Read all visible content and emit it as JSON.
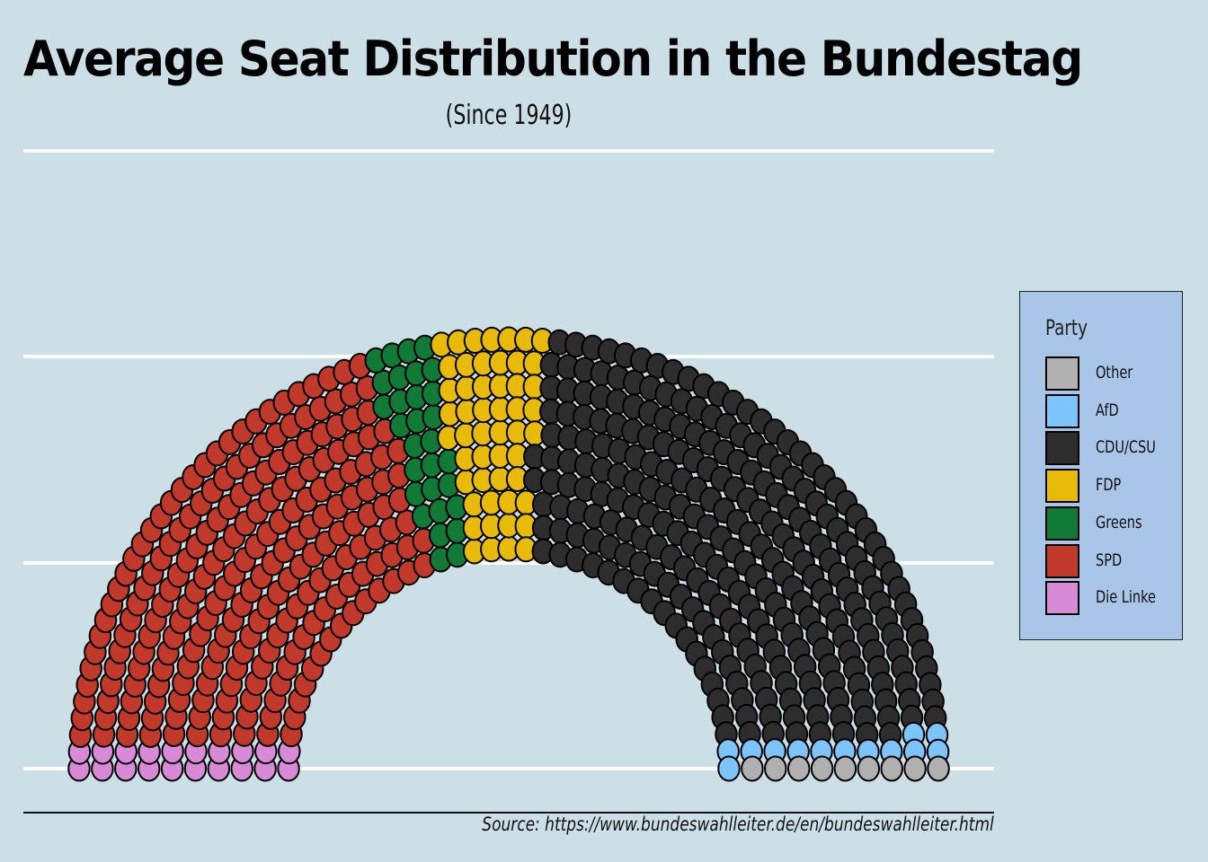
{
  "chart_data": {
    "type": "parliament",
    "title": "Average Seat Distribution in the Bundestag",
    "subtitle": "(Since 1949)",
    "source": "Source: https://www.bundeswahlleiter.de/en/bundeswahlleiter.html",
    "legend_title": "Party",
    "legend_position": "right",
    "grid": true,
    "parties": [
      {
        "name": "Die Linke",
        "seats": 20,
        "color": "#d98ad6"
      },
      {
        "name": "SPD",
        "seats": 219,
        "color": "#c0392b"
      },
      {
        "name": "Greens",
        "seats": 30,
        "color": "#117a37"
      },
      {
        "name": "FDP",
        "seats": 51,
        "color": "#e8bb0a"
      },
      {
        "name": "CDU/CSU",
        "seats": 264,
        "color": "#2d2d2d"
      },
      {
        "name": "AfD",
        "seats": 13,
        "color": "#7cc4f9"
      },
      {
        "name": "Other",
        "seats": 9,
        "color": "#b0b0b0"
      }
    ],
    "legend_order": [
      "Other",
      "AfD",
      "CDU/CSU",
      "FDP",
      "Greens",
      "SPD",
      "Die Linke"
    ]
  }
}
